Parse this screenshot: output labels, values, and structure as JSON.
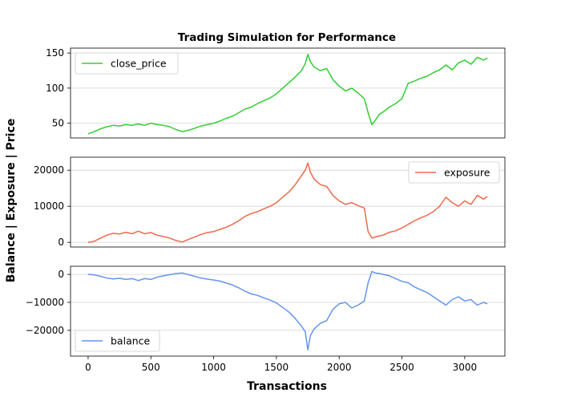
{
  "figure": {
    "title": "Trading Simulation for Performance",
    "xlabel": "Transactions",
    "ylabel": "Balance | Exposure | Price"
  },
  "chart_data": [
    {
      "type": "line",
      "xlim": [
        -140,
        3320
      ],
      "ylim": [
        29,
        157
      ],
      "yticks": [
        50,
        100,
        150
      ],
      "grid": "y",
      "legend_position": "top-left",
      "series": [
        {
          "name": "close_price",
          "color": "#32cd32",
          "x": [
            0,
            50,
            100,
            150,
            200,
            250,
            300,
            350,
            400,
            450,
            500,
            550,
            600,
            650,
            700,
            750,
            800,
            850,
            900,
            950,
            1000,
            1050,
            1100,
            1150,
            1200,
            1250,
            1300,
            1350,
            1400,
            1450,
            1500,
            1550,
            1600,
            1650,
            1700,
            1730,
            1750,
            1770,
            1800,
            1850,
            1900,
            1950,
            2000,
            2050,
            2100,
            2150,
            2200,
            2230,
            2260,
            2290,
            2320,
            2350,
            2400,
            2450,
            2500,
            2550,
            2600,
            2650,
            2700,
            2750,
            2800,
            2850,
            2900,
            2950,
            3000,
            3050,
            3100,
            3150,
            3180
          ],
          "y": [
            35,
            38,
            42,
            45,
            47,
            46,
            48,
            47,
            49,
            47,
            50,
            48,
            47,
            45,
            41,
            38,
            40,
            43,
            46,
            48,
            50,
            53,
            57,
            60,
            65,
            70,
            73,
            78,
            82,
            86,
            92,
            100,
            108,
            116,
            125,
            135,
            148,
            138,
            130,
            125,
            128,
            112,
            103,
            96,
            100,
            93,
            85,
            65,
            48,
            55,
            63,
            66,
            73,
            78,
            85,
            107,
            110,
            114,
            117,
            122,
            126,
            133,
            126,
            136,
            140,
            134,
            144,
            140,
            143
          ]
        }
      ]
    },
    {
      "type": "line",
      "xlim": [
        -140,
        3320
      ],
      "ylim": [
        -1300,
        23600
      ],
      "yticks": [
        0,
        10000,
        20000
      ],
      "grid": "y",
      "legend_position": "top-right",
      "series": [
        {
          "name": "exposure",
          "color": "#f0694b",
          "x": [
            0,
            50,
            100,
            150,
            200,
            250,
            300,
            350,
            400,
            450,
            500,
            550,
            600,
            650,
            700,
            750,
            800,
            850,
            900,
            950,
            1000,
            1050,
            1100,
            1150,
            1200,
            1250,
            1300,
            1350,
            1400,
            1450,
            1500,
            1550,
            1600,
            1650,
            1700,
            1730,
            1750,
            1770,
            1800,
            1850,
            1900,
            1950,
            2000,
            2050,
            2100,
            2150,
            2200,
            2230,
            2260,
            2290,
            2320,
            2350,
            2400,
            2450,
            2500,
            2550,
            2600,
            2650,
            2700,
            2750,
            2800,
            2850,
            2900,
            2950,
            3000,
            3050,
            3100,
            3150,
            3180
          ],
          "y": [
            0,
            300,
            1200,
            2000,
            2500,
            2300,
            2800,
            2400,
            3100,
            2400,
            2700,
            2000,
            1600,
            1200,
            500,
            100,
            800,
            1500,
            2200,
            2700,
            3000,
            3600,
            4200,
            5000,
            6000,
            7200,
            8000,
            8500,
            9300,
            10000,
            11000,
            12500,
            14000,
            16000,
            18500,
            20000,
            22000,
            19500,
            17500,
            16000,
            15500,
            13000,
            11500,
            10500,
            11000,
            10200,
            9500,
            3000,
            1200,
            1500,
            1800,
            2000,
            2800,
            3200,
            4000,
            5000,
            6000,
            6800,
            7500,
            8500,
            10000,
            12500,
            11000,
            10000,
            11500,
            10500,
            13000,
            12000,
            12700
          ]
        }
      ]
    },
    {
      "type": "line",
      "xlim": [
        -140,
        3320
      ],
      "ylim": [
        -29200,
        2900
      ],
      "yticks": [
        -20000,
        -10000,
        0
      ],
      "grid": "y",
      "legend_position": "bottom-left",
      "series": [
        {
          "name": "balance",
          "color": "#6495ed",
          "x": [
            0,
            50,
            100,
            150,
            200,
            250,
            300,
            350,
            400,
            450,
            500,
            550,
            600,
            650,
            700,
            750,
            800,
            850,
            900,
            950,
            1000,
            1050,
            1100,
            1150,
            1200,
            1250,
            1300,
            1350,
            1400,
            1450,
            1500,
            1550,
            1600,
            1650,
            1700,
            1730,
            1750,
            1770,
            1800,
            1850,
            1900,
            1950,
            2000,
            2050,
            2100,
            2150,
            2200,
            2230,
            2260,
            2290,
            2320,
            2350,
            2400,
            2450,
            2500,
            2550,
            2600,
            2650,
            2700,
            2750,
            2800,
            2850,
            2900,
            2950,
            3000,
            3050,
            3100,
            3150,
            3180
          ],
          "y": [
            0,
            -200,
            -700,
            -1300,
            -1600,
            -1400,
            -1800,
            -1500,
            -2200,
            -1500,
            -1800,
            -1000,
            -500,
            -100,
            300,
            500,
            -100,
            -700,
            -1300,
            -1700,
            -2000,
            -2400,
            -3100,
            -3800,
            -4800,
            -6000,
            -7000,
            -7500,
            -8400,
            -9200,
            -10200,
            -11800,
            -13500,
            -15800,
            -18500,
            -20500,
            -27000,
            -22000,
            -19500,
            -17500,
            -16500,
            -12500,
            -10500,
            -10000,
            -12000,
            -11000,
            -9500,
            -3000,
            1000,
            500,
            300,
            0,
            -500,
            -1500,
            -2500,
            -3000,
            -4500,
            -5500,
            -6500,
            -8000,
            -9500,
            -11000,
            -9000,
            -8000,
            -9500,
            -9000,
            -11000,
            -10000,
            -10500
          ]
        }
      ]
    },
    {
      "type": "axis",
      "xlim": [
        -140,
        3320
      ],
      "xticks": [
        0,
        500,
        1000,
        1500,
        2000,
        2500,
        3000
      ]
    }
  ]
}
